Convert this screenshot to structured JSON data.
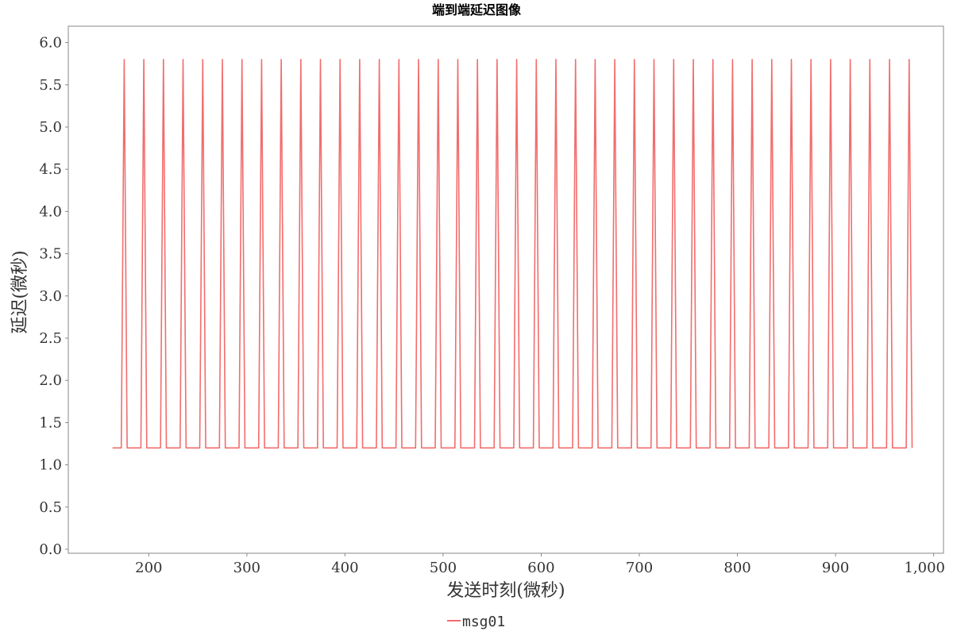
{
  "chart_data": {
    "type": "line",
    "title": "端到端延迟图像",
    "xlabel": "发送时刻(微秒)",
    "ylabel": "延迟(微秒)",
    "xlim": [
      118,
      1010
    ],
    "ylim": [
      0,
      6.1
    ],
    "x_ticks": [
      200,
      300,
      400,
      500,
      600,
      700,
      800,
      900,
      1000
    ],
    "x_tick_labels": [
      "200",
      "300",
      "400",
      "500",
      "600",
      "700",
      "800",
      "900",
      "1,000"
    ],
    "y_ticks": [
      0.0,
      0.5,
      1.0,
      1.5,
      2.0,
      2.5,
      3.0,
      3.5,
      4.0,
      4.5,
      5.0,
      5.5,
      6.0
    ],
    "y_tick_labels": [
      "0.0",
      "0.5",
      "1.0",
      "1.5",
      "2.0",
      "2.5",
      "3.0",
      "3.5",
      "4.0",
      "4.5",
      "5.0",
      "5.5",
      "6.0"
    ],
    "grid": false,
    "legend_position": "bottom-center",
    "series": [
      {
        "name": "msg01",
        "color": "#f26d6d",
        "x": [
          163,
          172,
          175,
          178,
          192,
          195,
          198,
          212,
          215,
          218,
          232,
          235,
          238,
          252,
          255,
          258,
          272,
          275,
          278,
          292,
          295,
          298,
          312,
          315,
          318,
          332,
          335,
          338,
          352,
          355,
          358,
          372,
          375,
          378,
          392,
          395,
          398,
          412,
          415,
          418,
          432,
          435,
          438,
          452,
          455,
          458,
          472,
          475,
          478,
          492,
          495,
          498,
          512,
          515,
          518,
          532,
          535,
          538,
          552,
          555,
          558,
          572,
          575,
          578,
          592,
          595,
          598,
          612,
          615,
          618,
          632,
          635,
          638,
          652,
          655,
          658,
          672,
          675,
          678,
          692,
          695,
          698,
          712,
          715,
          718,
          732,
          735,
          738,
          752,
          755,
          758,
          772,
          775,
          778,
          792,
          795,
          798,
          812,
          815,
          818,
          832,
          835,
          838,
          852,
          855,
          858,
          872,
          875,
          878,
          892,
          895,
          898,
          912,
          915,
          918,
          932,
          935,
          938,
          952,
          955,
          958,
          972,
          975,
          978
        ],
        "y": [
          1.2,
          1.2,
          5.8,
          1.2,
          1.2,
          5.8,
          1.2,
          1.2,
          5.8,
          1.2,
          1.2,
          5.8,
          1.2,
          1.2,
          5.8,
          1.2,
          1.2,
          5.8,
          1.2,
          1.2,
          5.8,
          1.2,
          1.2,
          5.8,
          1.2,
          1.2,
          5.8,
          1.2,
          1.2,
          5.8,
          1.2,
          1.2,
          5.8,
          1.2,
          1.2,
          5.8,
          1.2,
          1.2,
          5.8,
          1.2,
          1.2,
          5.8,
          1.2,
          1.2,
          5.8,
          1.2,
          1.2,
          5.8,
          1.2,
          1.2,
          5.8,
          1.2,
          1.2,
          5.8,
          1.2,
          1.2,
          5.8,
          1.2,
          1.2,
          5.8,
          1.2,
          1.2,
          5.8,
          1.2,
          1.2,
          5.8,
          1.2,
          1.2,
          5.8,
          1.2,
          1.2,
          5.8,
          1.2,
          1.2,
          5.8,
          1.2,
          1.2,
          5.8,
          1.2,
          1.2,
          5.8,
          1.2,
          1.2,
          5.8,
          1.2,
          1.2,
          5.8,
          1.2,
          1.2,
          5.8,
          1.2,
          1.2,
          5.8,
          1.2,
          1.2,
          5.8,
          1.2,
          1.2,
          5.8,
          1.2,
          1.2,
          5.8,
          1.2,
          1.2,
          5.8,
          1.2,
          1.2,
          5.8,
          1.2,
          1.2,
          5.8,
          1.2,
          1.2,
          5.8,
          1.2,
          1.2,
          5.8,
          1.2,
          1.2,
          5.8,
          1.2,
          1.2,
          5.8,
          1.2
        ]
      }
    ]
  }
}
